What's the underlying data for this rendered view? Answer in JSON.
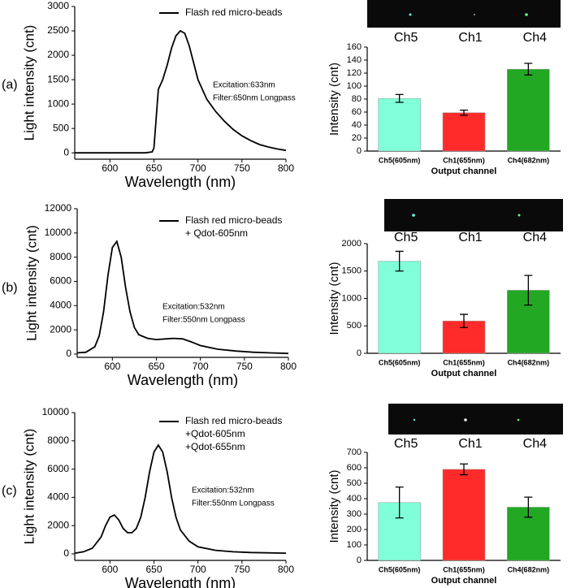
{
  "panels": [
    {
      "label": "(a)",
      "image_labels": [
        "Ch5",
        "Ch1",
        "Ch4"
      ]
    },
    {
      "label": "(b)",
      "image_labels": [
        "Ch5",
        "Ch1",
        "Ch4"
      ]
    },
    {
      "label": "(c)",
      "image_labels": [
        "Ch5",
        "Ch1",
        "Ch4"
      ]
    }
  ],
  "chart_data": [
    {
      "type": "line",
      "xlabel": "Wavelength (nm)",
      "ylabel": "Light intensity (cnt)",
      "xlim": [
        560,
        800
      ],
      "xticks": [
        600,
        650,
        700,
        750,
        800
      ],
      "ylim": [
        -130,
        3000
      ],
      "yticks": [
        0,
        500,
        1000,
        1500,
        2000,
        2500,
        3000
      ],
      "annotations": [
        "Excitation:633nm",
        "Filter:650nm Longpass"
      ],
      "x": [
        560,
        580,
        600,
        620,
        640,
        648,
        650,
        655,
        660,
        665,
        670,
        675,
        680,
        685,
        690,
        695,
        700,
        710,
        720,
        730,
        740,
        750,
        760,
        770,
        780,
        790,
        800
      ],
      "series": [
        {
          "name": "Flash red micro-beads",
          "legend_sublabels": [],
          "color": "#000000",
          "values": [
            0,
            0,
            0,
            0,
            0,
            20,
            100,
            1300,
            1500,
            1800,
            2150,
            2400,
            2500,
            2450,
            2200,
            1850,
            1500,
            1100,
            850,
            650,
            480,
            350,
            250,
            170,
            120,
            80,
            50
          ]
        }
      ]
    },
    {
      "type": "bar",
      "xlabel": "Output channel",
      "ylabel": "Intensity (cnt)",
      "categories": [
        "Ch5(605nm)",
        "Ch1(655nm)",
        "Ch4(682nm)"
      ],
      "values": [
        81,
        59,
        126
      ],
      "errors": [
        6,
        4,
        9
      ],
      "colors": [
        "#80ffd8",
        "#ff2a2a",
        "#22a822"
      ],
      "ylim": [
        0,
        160
      ],
      "yticks": [
        0,
        20,
        40,
        60,
        80,
        100,
        120,
        140,
        160
      ]
    },
    {
      "type": "line",
      "xlabel": "Wavelength (nm)",
      "ylabel": "Light intensity (cnt)",
      "xlim": [
        560,
        800
      ],
      "xticks": [
        600,
        650,
        700,
        750,
        800
      ],
      "ylim": [
        -270,
        12000
      ],
      "yticks": [
        0,
        2000,
        4000,
        6000,
        8000,
        10000,
        12000
      ],
      "annotations": [
        "Excitation:532nm",
        "Filter:550nm Longpass"
      ],
      "x": [
        560,
        570,
        580,
        585,
        590,
        595,
        600,
        605,
        610,
        615,
        620,
        625,
        630,
        640,
        650,
        660,
        670,
        680,
        690,
        700,
        720,
        740,
        760,
        780,
        800
      ],
      "series": [
        {
          "name": "Flash red micro-beads",
          "legend_sublabels": [
            "+ Qdot-605nm"
          ],
          "color": "#000000",
          "values": [
            100,
            150,
            600,
            1500,
            3500,
            6500,
            8800,
            9300,
            8000,
            5500,
            3500,
            2200,
            1600,
            1300,
            1200,
            1250,
            1300,
            1250,
            1000,
            700,
            400,
            250,
            150,
            100,
            50
          ]
        }
      ]
    },
    {
      "type": "bar",
      "xlabel": "Output channel",
      "ylabel": "Intensity (cnt)",
      "categories": [
        "Ch5(605nm)",
        "Ch1(655nm)",
        "Ch4(682nm)"
      ],
      "values": [
        1680,
        590,
        1150
      ],
      "errors": [
        180,
        120,
        270
      ],
      "colors": [
        "#80ffd8",
        "#ff2a2a",
        "#22a822"
      ],
      "ylim": [
        0,
        2000
      ],
      "yticks": [
        0,
        500,
        1000,
        1500,
        2000
      ]
    },
    {
      "type": "line",
      "xlabel": "Wavelength (nm)",
      "ylabel": "Light intensity (cnt)",
      "xlim": [
        560,
        800
      ],
      "xticks": [
        600,
        650,
        700,
        750,
        800
      ],
      "ylim": [
        -460,
        10000
      ],
      "yticks": [
        0,
        2000,
        4000,
        6000,
        8000,
        10000
      ],
      "annotations": [
        "Excitation:532nm",
        "Filter:550nm Longpass"
      ],
      "x": [
        560,
        570,
        580,
        590,
        595,
        600,
        605,
        610,
        615,
        620,
        625,
        630,
        635,
        640,
        645,
        650,
        655,
        660,
        665,
        670,
        675,
        680,
        690,
        700,
        720,
        740,
        760,
        800
      ],
      "series": [
        {
          "name": "Flash red micro-beads",
          "legend_sublabels": [
            "+Qdot-605nm",
            "+Qdot-655nm"
          ],
          "color": "#000000",
          "values": [
            50,
            150,
            400,
            1200,
            2000,
            2600,
            2750,
            2400,
            1800,
            1500,
            1500,
            1800,
            2600,
            4000,
            5800,
            7200,
            7700,
            7200,
            5800,
            4000,
            2600,
            1700,
            900,
            500,
            250,
            150,
            100,
            50
          ]
        }
      ]
    },
    {
      "type": "bar",
      "xlabel": "Output channel",
      "ylabel": "Intensity (cnt)",
      "categories": [
        "Ch5(605nm)",
        "Ch1(655nm)",
        "Ch4(682nm)"
      ],
      "values": [
        375,
        590,
        345
      ],
      "errors": [
        100,
        35,
        65
      ],
      "colors": [
        "#80ffd8",
        "#ff2a2a",
        "#22a822"
      ],
      "ylim": [
        0,
        700
      ],
      "yticks": [
        0,
        100,
        200,
        300,
        400,
        500,
        600,
        700
      ]
    }
  ]
}
